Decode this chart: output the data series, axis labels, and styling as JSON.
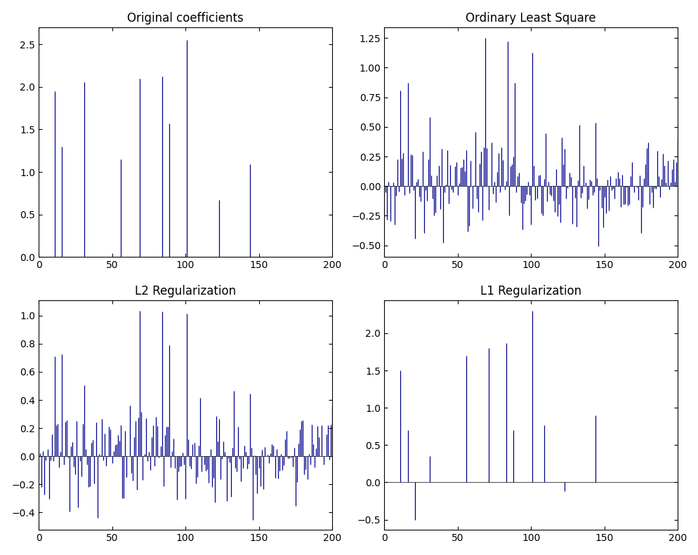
{
  "subplot_titles": [
    "Original coefficients",
    "Ordinary Least Square",
    "L2 Regularization",
    "L1 Regularization"
  ],
  "color": "#00008B",
  "background": "#ffffff",
  "fig_width": 9.95,
  "fig_height": 7.91,
  "orig_indices": [
    10,
    15,
    30,
    55,
    68,
    83,
    88,
    100,
    122,
    143,
    150
  ],
  "orig_values": [
    1.95,
    1.3,
    2.06,
    1.15,
    2.1,
    2.12,
    1.57,
    2.55,
    0.67,
    1.09,
    0.0
  ],
  "l1_indices": [
    10,
    15,
    20,
    30,
    55,
    70,
    82,
    87,
    100,
    108,
    122,
    143
  ],
  "l1_values": [
    1.5,
    0.7,
    -0.5,
    0.35,
    1.7,
    1.8,
    1.87,
    0.7,
    2.3,
    0.77,
    -0.12,
    0.9
  ],
  "n_coeffs": 200,
  "ols_seed": 77,
  "l2_seed": 42,
  "ols_scale": 1.0,
  "l2_scale": 0.3
}
